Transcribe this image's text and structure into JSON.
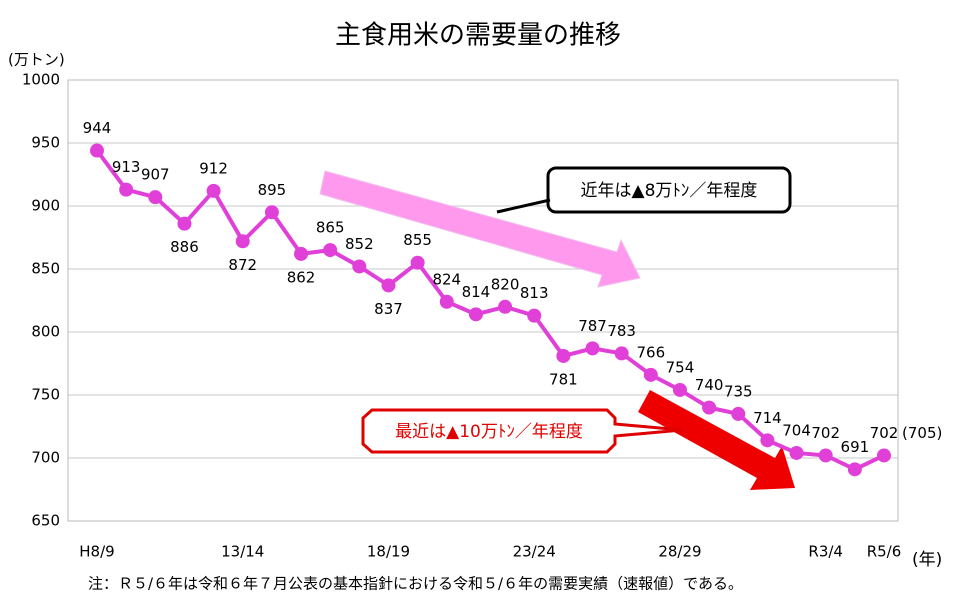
{
  "chart_data": {
    "type": "line",
    "title": "主食用米の需要量の推移",
    "y_label": "(万トン)",
    "x_label": "(年)",
    "note": "注：Ｒ５/６年は令和６年７月公表の基本指針における令和５/６年の需要実績（速報値）である。",
    "categories": [
      "H8/9",
      null,
      null,
      null,
      null,
      "13/14",
      null,
      null,
      null,
      null,
      "18/19",
      null,
      null,
      null,
      null,
      "23/24",
      null,
      null,
      null,
      null,
      "28/29",
      null,
      null,
      null,
      null,
      "R3/4",
      null,
      "R5/6"
    ],
    "series": [
      {
        "color": "#e040d8",
        "values": [
          944,
          913,
          907,
          886,
          912,
          872,
          895,
          862,
          865,
          852,
          837,
          855,
          824,
          814,
          820,
          813,
          781,
          787,
          783,
          766,
          754,
          740,
          735,
          714,
          704,
          702,
          691,
          702
        ]
      }
    ],
    "ylim": [
      650,
      1000
    ],
    "yticks": [
      650,
      700,
      750,
      800,
      850,
      900,
      950,
      1000
    ],
    "grid": true,
    "annotations": [
      "(705)",
      "近年は▲8万ﾄﾝ／年程度",
      "最近は▲10万ﾄﾝ／年程度"
    ]
  }
}
